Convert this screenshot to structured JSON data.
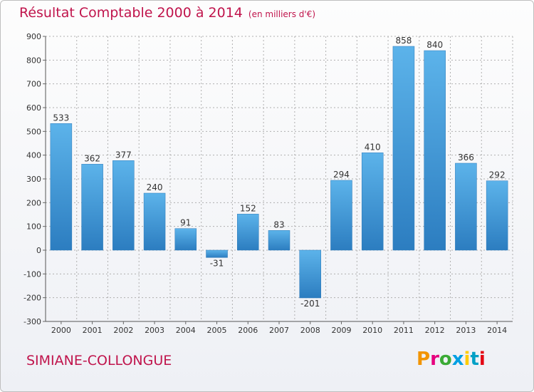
{
  "header": {
    "title": "Résultat Comptable 2000 à 2014",
    "unit": "(en milliers d'€)"
  },
  "footer": {
    "commune": "SIMIANE-COLLONGUE",
    "brand": "Proxiti",
    "brand_colors": [
      "#f29400",
      "#e6007e",
      "#3aaa35",
      "#009fe3",
      "#ffcc00",
      "#00a0c6",
      "#e30613"
    ]
  },
  "colors": {
    "title": "#c0144c",
    "bar_light": "#5cb3ea",
    "bar_dark": "#2c7dc0",
    "grid": "#b0b0b0"
  },
  "chart_data": {
    "type": "bar",
    "title": "Résultat Comptable 2000 à 2014",
    "subtitle": "(en milliers d'€)",
    "xlabel": "",
    "ylabel": "",
    "ylim": [
      -300,
      900
    ],
    "yticks": [
      "900",
      "800",
      "700",
      "600",
      "500",
      "400",
      "300",
      "200",
      "100",
      "0",
      "-100",
      "-200",
      "-300"
    ],
    "grid": true,
    "categories": [
      "2000",
      "2001",
      "2002",
      "2003",
      "2004",
      "2005",
      "2006",
      "2007",
      "2008",
      "2009",
      "2010",
      "2011",
      "2012",
      "2013",
      "2014"
    ],
    "values": [
      533,
      362,
      377,
      240,
      91,
      -31,
      152,
      83,
      -201,
      294,
      410,
      858,
      840,
      366,
      292
    ],
    "value_labels": [
      "533",
      "362",
      "377",
      "240",
      "91",
      "-31",
      "152",
      "83",
      "-201",
      "294",
      "410",
      "858",
      "840",
      "366",
      "292"
    ]
  }
}
